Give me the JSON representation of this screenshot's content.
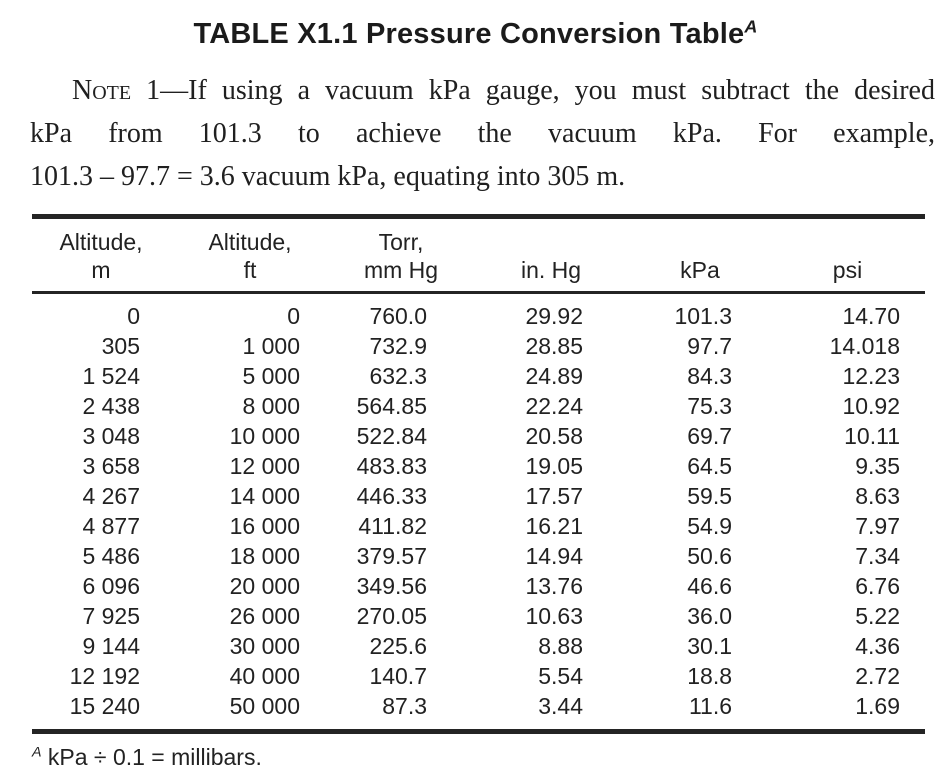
{
  "page": {
    "title": {
      "text": "TABLE X1.1 Pressure Conversion Table",
      "superscript": "A"
    },
    "note": {
      "label_smallcaps": "Note",
      "line1_rest": " 1—If using a vacuum kPa gauge, you must subtract the desired",
      "line2": "kPa from 101.3 to achieve the vacuum kPa. For example,",
      "line3": "101.3 – 97.7 = 3.6 vacuum kPa, equating into 305 m."
    },
    "table": {
      "columns": [
        {
          "line1": "Altitude,",
          "line2": "m"
        },
        {
          "line1": "Altitude,",
          "line2": "ft"
        },
        {
          "line1": "Torr,",
          "line2": "mm Hg"
        },
        {
          "line1": "",
          "line2": "in. Hg"
        },
        {
          "line1": "",
          "line2": "kPa"
        },
        {
          "line1": "",
          "line2": "psi"
        }
      ],
      "rows": [
        [
          "0",
          "0",
          "760.0",
          "29.92",
          "101.3",
          "14.70"
        ],
        [
          "305",
          "1 000",
          "732.9",
          "28.85",
          "97.7",
          "14.018"
        ],
        [
          "1 524",
          "5 000",
          "632.3",
          "24.89",
          "84.3",
          "12.23"
        ],
        [
          "2 438",
          "8 000",
          "564.85",
          "22.24",
          "75.3",
          "10.92"
        ],
        [
          "3 048",
          "10 000",
          "522.84",
          "20.58",
          "69.7",
          "10.11"
        ],
        [
          "3 658",
          "12 000",
          "483.83",
          "19.05",
          "64.5",
          "9.35"
        ],
        [
          "4 267",
          "14 000",
          "446.33",
          "17.57",
          "59.5",
          "8.63"
        ],
        [
          "4 877",
          "16 000",
          "411.82",
          "16.21",
          "54.9",
          "7.97"
        ],
        [
          "5 486",
          "18 000",
          "379.57",
          "14.94",
          "50.6",
          "7.34"
        ],
        [
          "6 096",
          "20 000",
          "349.56",
          "13.76",
          "46.6",
          "6.76"
        ],
        [
          "7 925",
          "26 000",
          "270.05",
          "10.63",
          "36.0",
          "5.22"
        ],
        [
          "9 144",
          "30 000",
          "225.6",
          "8.88",
          "30.1",
          "4.36"
        ],
        [
          "12 192",
          "40 000",
          "140.7",
          "5.54",
          "18.8",
          "2.72"
        ],
        [
          "15 240",
          "50 000",
          "87.3",
          "3.44",
          "11.6",
          "1.69"
        ]
      ]
    },
    "footnote": {
      "superscript": "A",
      "text": " kPa ÷ 0.1 = millibars."
    }
  },
  "colors": {
    "background": "#ffffff",
    "text": "#1e1e1e",
    "rule": "#242424"
  }
}
